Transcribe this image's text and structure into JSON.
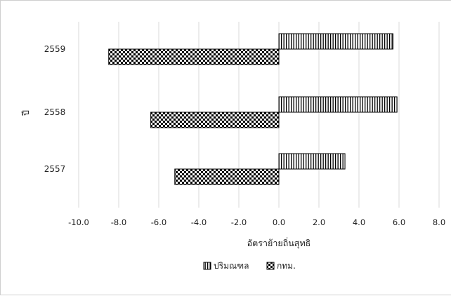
{
  "chart_data": {
    "type": "bar",
    "orientation": "horizontal",
    "categories": [
      "2557",
      "2558",
      "2559"
    ],
    "series": [
      {
        "name": "ปริมณฑล",
        "values": [
          3.3,
          5.9,
          5.7
        ],
        "pattern": "vertical-stripes"
      },
      {
        "name": "กทม.",
        "values": [
          -5.2,
          -6.4,
          -8.5
        ],
        "pattern": "checkerboard"
      }
    ],
    "x_ticks": [
      "-10.0",
      "-8.0",
      "-6.0",
      "-4.0",
      "-2.0",
      "0.0",
      "2.0",
      "4.0",
      "6.0",
      "8.0"
    ],
    "xlim": [
      -10,
      8
    ],
    "xlabel": "อัตราย้ายถิ่นสุทธิ",
    "ylabel": "ปี",
    "grid": "vertical",
    "legend_position": "bottom",
    "colors": {
      "bar_fill": "#000000",
      "bar_background": "#ffffff",
      "grid": "#d9d9d9"
    }
  }
}
